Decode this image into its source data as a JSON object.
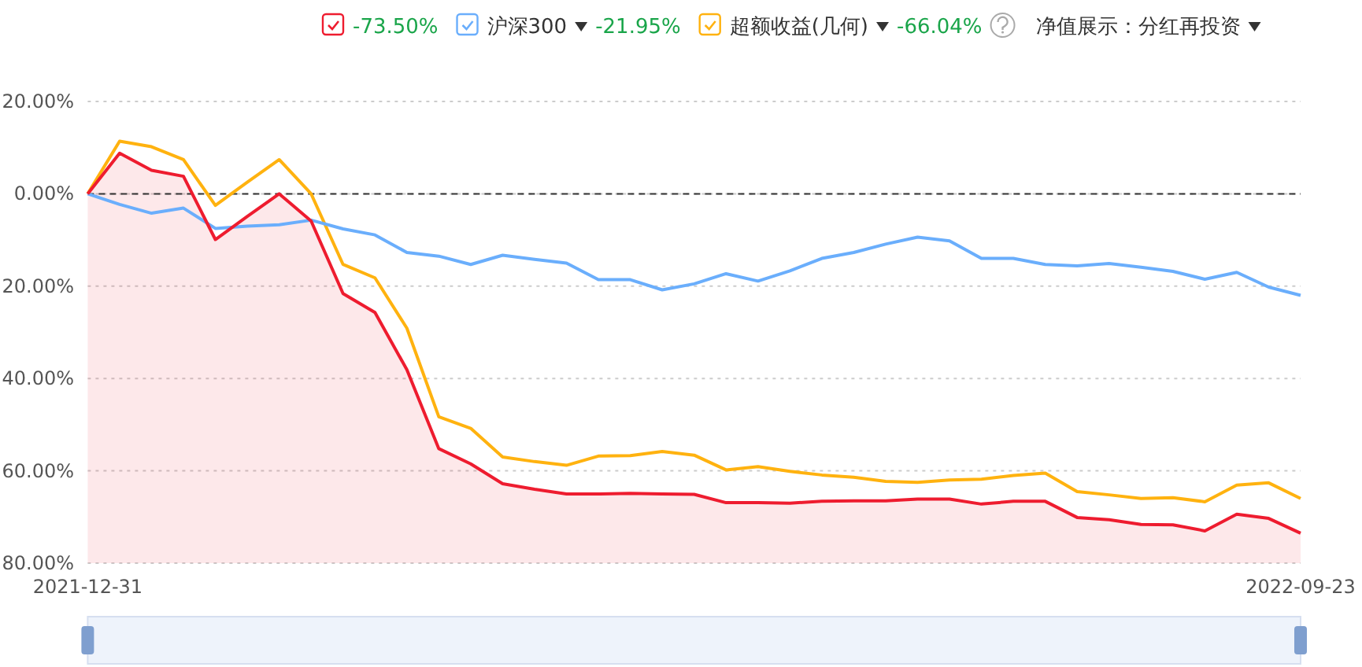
{
  "chart_data": {
    "type": "line",
    "legend": "top",
    "grid": "y",
    "categories": [
      "2021-12-31",
      null,
      null,
      null,
      null,
      null,
      null,
      null,
      null,
      null,
      null,
      null,
      null,
      null,
      null,
      null,
      null,
      null,
      null,
      null,
      null,
      null,
      null,
      null,
      null,
      null,
      null,
      null,
      null,
      null,
      null,
      null,
      null,
      null,
      null,
      null,
      null,
      null,
      "2022-09-23"
    ],
    "ylim": [
      -80,
      20
    ],
    "yticks": [
      {
        "value": 20,
        "label": "20.00%"
      },
      {
        "value": 0,
        "label": "0.00%"
      },
      {
        "value": -20,
        "label": "20.00%"
      },
      {
        "value": -40,
        "label": "40.00%"
      },
      {
        "value": -60,
        "label": "60.00%"
      },
      {
        "value": -80,
        "label": "80.00%"
      }
    ],
    "ref_lines": [
      {
        "axis": "y",
        "value": 0,
        "color": "#333333",
        "line_style": "dashed"
      }
    ],
    "annotations": [
      "-73.50%",
      "-21.95%",
      "-66.04%",
      "净值展示：分红再投资"
    ],
    "series": [
      {
        "color": "#ee1c2f",
        "values": [
          0,
          8.8,
          5.1,
          3.8,
          -9.9,
          -4.9,
          0,
          -5.9,
          -21.6,
          -25.7,
          -38.1,
          -55.2,
          -58.5,
          -62.8,
          -64.0,
          -65.0,
          -65.0,
          -64.9,
          -65.0,
          -65.1,
          -66.9,
          -66.9,
          -67.0,
          -66.6,
          -66.5,
          -66.5,
          -66.1,
          -66.1,
          -67.2,
          -66.6,
          -66.6,
          -70.1,
          -70.6,
          -71.6,
          -71.7,
          -73.0,
          -69.4,
          -70.3,
          -73.5
        ],
        "upper": [
          0,
          8.8,
          5.1,
          3.8,
          -9.9,
          -4.9,
          0,
          -5.9,
          -21.6,
          -25.7,
          -38.1,
          -55.2,
          -58.5,
          -62.8,
          -64.0,
          -65.0,
          -65.0,
          -64.9,
          -65.0,
          -65.1,
          -66.9,
          -66.9,
          -67.0,
          -66.6,
          -66.5,
          -66.5,
          -66.1,
          -66.1,
          -67.2,
          -66.6,
          -66.6,
          -70.1,
          -70.6,
          -71.6,
          -71.7,
          -73.0,
          -69.4,
          -70.3,
          -73.5
        ],
        "lower": [
          -80,
          -80,
          -80,
          -80,
          -80,
          -80,
          -80,
          -80,
          -80,
          -80,
          -80,
          -80,
          -80,
          -80,
          -80,
          -80,
          -80,
          -80,
          -80,
          -80,
          -80,
          -80,
          -80,
          -80,
          -80,
          -80,
          -80,
          -80,
          -80,
          -80,
          -80,
          -80,
          -80,
          -80,
          -80,
          -80,
          -80,
          -80,
          -80
        ]
      },
      {
        "name": "沪深300",
        "color": "#6aaefc",
        "values": [
          0,
          -2.3,
          -4.2,
          -3.1,
          -7.5,
          -7.0,
          -6.7,
          -5.7,
          -7.6,
          -8.9,
          -12.7,
          -13.5,
          -15.3,
          -13.3,
          -14.2,
          -15.0,
          -18.6,
          -18.6,
          -20.8,
          -19.5,
          -17.3,
          -18.9,
          -16.7,
          -14.0,
          -12.7,
          -10.9,
          -9.4,
          -10.2,
          -14.0,
          -14.0,
          -15.3,
          -15.6,
          -15.1,
          -15.9,
          -16.8,
          -18.5,
          -17.0,
          -20.2,
          -22.0
        ]
      },
      {
        "name": "超额收益(几何)",
        "color": "#ffb20f",
        "values": [
          0,
          11.4,
          10.2,
          7.4,
          -2.5,
          2.5,
          7.4,
          0,
          -15.3,
          -18.2,
          -29.1,
          -48.3,
          -50.8,
          -57.0,
          -58.0,
          -58.8,
          -56.8,
          -56.7,
          -55.8,
          -56.6,
          -59.8,
          -59.1,
          -60.1,
          -60.9,
          -61.4,
          -62.3,
          -62.5,
          -62.0,
          -61.8,
          -61.0,
          -60.5,
          -64.5,
          -65.2,
          -66.0,
          -65.8,
          -66.7,
          -63.1,
          -62.6,
          -66.0
        ]
      }
    ]
  }
}
